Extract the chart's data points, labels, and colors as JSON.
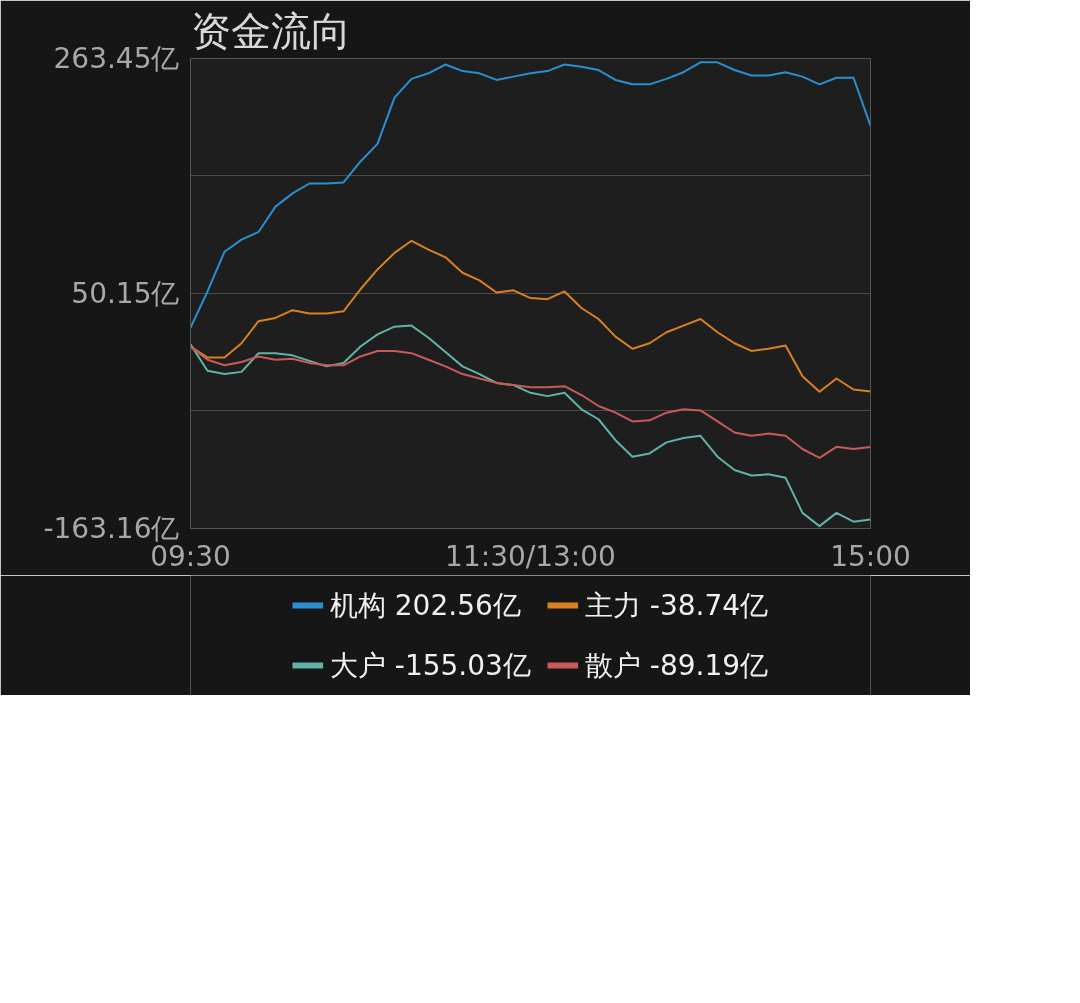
{
  "chart_data": {
    "type": "line",
    "title": "资金流向",
    "categories": [
      "09:30",
      null,
      null,
      null,
      null,
      null,
      null,
      null,
      null,
      null,
      null,
      null,
      null,
      null,
      null,
      null,
      null,
      null,
      null,
      null,
      "11:30/13:00",
      null,
      null,
      null,
      null,
      null,
      null,
      null,
      null,
      null,
      null,
      null,
      null,
      null,
      null,
      null,
      null,
      null,
      null,
      null,
      "15:00"
    ],
    "ylim": [
      -163.16,
      263.45
    ],
    "yticks": [
      {
        "value": 263.45,
        "label": "263.45亿"
      },
      {
        "value": 156.8,
        "label": null
      },
      {
        "value": 50.15,
        "label": "50.15亿"
      },
      {
        "value": -56.5,
        "label": null
      },
      {
        "value": -163.16,
        "label": "-163.16亿"
      }
    ],
    "grid": "y",
    "legend": "bottom",
    "line_style": "solid",
    "series": [
      {
        "name": "机构 202.56亿",
        "color": "#2a8fd0",
        "values": [
          19,
          52,
          88,
          99,
          106,
          129,
          141,
          150,
          150,
          151,
          170,
          186,
          228,
          245,
          250,
          258,
          252,
          250,
          244,
          247,
          250,
          252,
          258,
          256,
          253,
          244,
          240,
          240,
          245,
          251,
          260,
          260,
          253,
          248,
          248,
          251,
          247,
          240,
          246,
          246,
          202.56
        ]
      },
      {
        "name": "主力 -38.74亿",
        "color": "#d9811f",
        "values": [
          2,
          -8,
          -8,
          5,
          25,
          28,
          35,
          32,
          32,
          34,
          54,
          72,
          87,
          98,
          90,
          83,
          69,
          62,
          51,
          53,
          46,
          45,
          52,
          37,
          27,
          11,
          0,
          5,
          15,
          21,
          27,
          15,
          5,
          -2,
          0,
          3,
          -25,
          -39,
          -27,
          -37,
          -38.74
        ]
      },
      {
        "name": "大户 -155.03亿",
        "color": "#5fb3a8",
        "values": [
          4,
          -20,
          -23,
          -21,
          -4,
          -4,
          -6,
          -11,
          -16,
          -13,
          2,
          13,
          20,
          21,
          10,
          -3,
          -16,
          -23,
          -31,
          -33,
          -40,
          -43,
          -40,
          -55,
          -64,
          -83,
          -98,
          -95,
          -85,
          -81,
          -79,
          -98,
          -110,
          -115,
          -114,
          -117,
          -149,
          -161,
          -149,
          -157,
          -155.03
        ]
      },
      {
        "name": "散户 -89.19亿",
        "color": "#c85a5a",
        "values": [
          2,
          -10,
          -15,
          -12,
          -7,
          -10,
          -9,
          -13,
          -15,
          -15,
          -7,
          -2,
          -2,
          -4,
          -10,
          -16,
          -23,
          -27,
          -31,
          -33,
          -35,
          -35,
          -34,
          -42,
          -52,
          -58,
          -66,
          -65,
          -58,
          -55,
          -56,
          -66,
          -76,
          -79,
          -77,
          -79,
          -91,
          -99,
          -89,
          -91,
          -89.19
        ]
      }
    ]
  }
}
